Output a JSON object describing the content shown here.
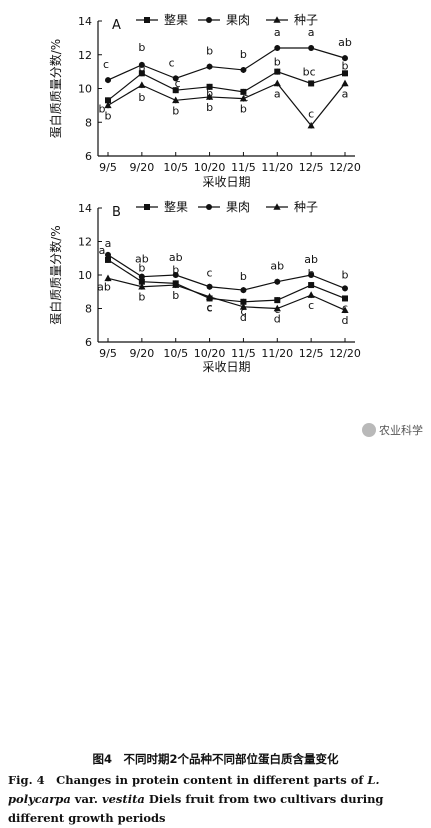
{
  "chart_data": [
    {
      "type": "line",
      "panel": "A",
      "ylabel": "蛋白质质量分数/%",
      "xlabel": "采收日期",
      "ylim": [
        6,
        14
      ],
      "yticks": [
        6,
        8,
        10,
        12,
        14
      ],
      "categories": [
        "9/5",
        "9/20",
        "10/5",
        "10/20",
        "11/5",
        "11/20",
        "12/5",
        "12/20"
      ],
      "legend_position": "top",
      "series": [
        {
          "name": "整果",
          "marker": "square",
          "values": [
            9.3,
            10.9,
            9.9,
            10.1,
            9.8,
            11.0,
            10.3,
            10.9
          ],
          "labels": [
            "b",
            "b",
            "c",
            "b",
            "c",
            "b",
            "bc",
            "b"
          ]
        },
        {
          "name": "果肉",
          "marker": "circle",
          "values": [
            10.5,
            11.4,
            10.6,
            11.3,
            11.1,
            12.4,
            12.4,
            11.8
          ],
          "labels": [
            "c",
            "b",
            "c",
            "b",
            "b",
            "a",
            "a",
            "ab"
          ]
        },
        {
          "name": "种子",
          "marker": "triangle",
          "values": [
            9.0,
            10.2,
            9.3,
            9.5,
            9.4,
            10.3,
            7.8,
            10.3
          ],
          "labels": [
            "b",
            "b",
            "b",
            "b",
            "b",
            "a",
            "c",
            "a"
          ]
        }
      ]
    },
    {
      "type": "line",
      "panel": "B",
      "ylabel": "蛋白质质量分数/%",
      "xlabel": "采收日期",
      "ylim": [
        6,
        14
      ],
      "yticks": [
        6,
        8,
        10,
        12,
        14
      ],
      "categories": [
        "9/5",
        "9/20",
        "10/5",
        "10/20",
        "11/5",
        "11/20",
        "12/5",
        "12/20"
      ],
      "legend_position": "top",
      "series": [
        {
          "name": "整果",
          "marker": "square",
          "values": [
            10.9,
            9.6,
            9.5,
            8.6,
            8.4,
            8.5,
            9.4,
            8.6
          ],
          "labels": [
            "a",
            "b",
            "b",
            "c",
            "c",
            "c",
            "b",
            "c"
          ]
        },
        {
          "name": "果肉",
          "marker": "circle",
          "values": [
            11.2,
            9.9,
            10.0,
            9.3,
            9.1,
            9.6,
            10.0,
            9.2
          ],
          "labels": [
            "a",
            "ab",
            "ab",
            "c",
            "b",
            "ab",
            "ab",
            "b"
          ]
        },
        {
          "name": "种子",
          "marker": "triangle",
          "values": [
            9.8,
            9.3,
            9.4,
            8.7,
            8.1,
            8.0,
            8.8,
            7.9
          ],
          "labels": [
            "ab",
            "b",
            "b",
            "c",
            "d",
            "d",
            "c",
            "d"
          ]
        }
      ]
    }
  ],
  "caption": {
    "zh": "图4　不同时期2个品种不同部位蛋白质含量变化",
    "en_prefix": "Fig. 4　Changes in protein content in different parts of ",
    "en_species": "L. polycarpa",
    "en_middle": " var. ",
    "en_variety": "vestita",
    "en_suffix": " Diels fruit from two cultivars during different growth periods"
  },
  "watermark": "农业科学"
}
